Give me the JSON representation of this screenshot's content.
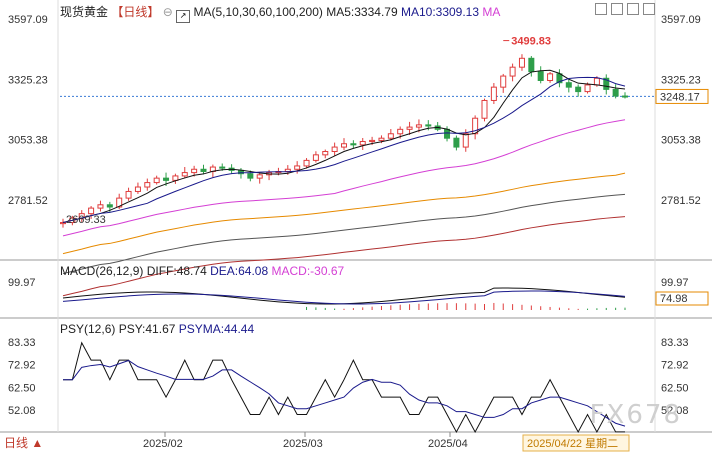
{
  "header": {
    "instrument": "现货黄金",
    "period": "【日线】",
    "ma_label": "MA(5,10,30,60,100,200)",
    "ma5": "MA5:3334.79",
    "ma10": "MA10:3309.13",
    "ma_more": "MA"
  },
  "main_axis": {
    "ticks": [
      "3597.09",
      "3325.23",
      "3053.38",
      "2781.52"
    ],
    "tick_values": [
      3597.09,
      3325.23,
      3053.38,
      2781.52
    ],
    "current_price": "3248.17",
    "high_label": "3499.83",
    "low_label": "2669.33"
  },
  "macd": {
    "title": "MACD(26,12,9)",
    "diff": "DIFF:48.74",
    "dea": "DEA:64.08",
    "macd": "MACD:-30.67",
    "tick_top": "99.97",
    "current": "74.98"
  },
  "psy": {
    "title": "PSY(12,6)",
    "psy": "PSY:41.67",
    "psyma": "PSYMA:44.44",
    "ticks": [
      "83.33",
      "72.92",
      "62.50",
      "52.08"
    ]
  },
  "xaxis": {
    "period_button": "日线",
    "dates": [
      "2025/02",
      "2025/03",
      "2025/04"
    ],
    "crosshair_date": "2025/04/22 星期二"
  },
  "watermark": "FX678",
  "colors": {
    "up": "#e03c3c",
    "down": "#2e9e4a",
    "ma5": "#111111",
    "ma10": "#1a1a8c",
    "ma30": "#d43fd4",
    "ma60": "#e68a00",
    "ma100": "#555555",
    "ma200": "#b03030"
  },
  "chart_data": {
    "type": "candlestick",
    "ylim": [
      2669.33,
      3597.09
    ],
    "candles_approx_close": [
      2680,
      2700,
      2720,
      2745,
      2760,
      2750,
      2790,
      2820,
      2840,
      2860,
      2880,
      2870,
      2890,
      2905,
      2920,
      2910,
      2930,
      2925,
      2915,
      2900,
      2880,
      2895,
      2905,
      2910,
      2920,
      2935,
      2960,
      2985,
      3000,
      3020,
      3035,
      3030,
      3045,
      3050,
      3060,
      3080,
      3100,
      3110,
      3120,
      3115,
      3100,
      3060,
      3020,
      3080,
      3150,
      3230,
      3290,
      3340,
      3380,
      3420,
      3360,
      3320,
      3350,
      3310,
      3290,
      3270,
      3300,
      3330,
      3280,
      3250,
      3248
    ]
  }
}
